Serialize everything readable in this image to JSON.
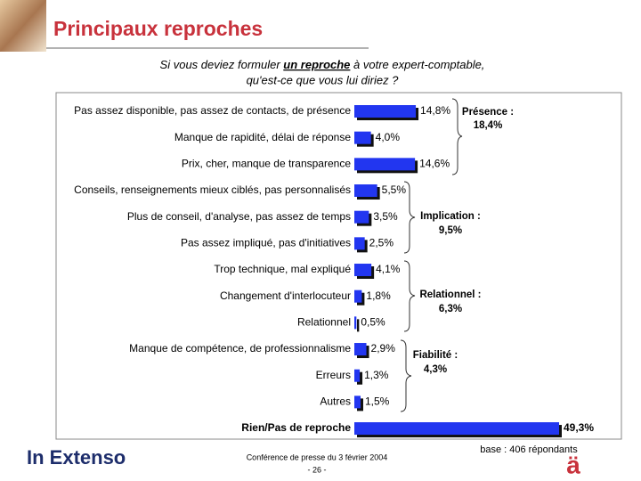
{
  "chart_data": {
    "type": "bar",
    "orientation": "horizontal",
    "title": "Principaux reproches",
    "question": [
      "Si vous deviez formuler ",
      "un reproche",
      " à votre expert-comptable,",
      "qu'est-ce que vous lui diriez ?"
    ],
    "categories": [
      "Pas assez disponible, pas assez de contacts, de présence",
      "Manque de rapidité, délai de réponse",
      "Prix, cher, manque de transparence",
      "Conseils, renseignements mieux ciblés, pas personnalisés",
      "Plus de conseil, d'analyse, pas assez de temps",
      "Pas assez impliqué, pas d'initiatives",
      "Trop technique, mal expliqué",
      "Changement d'interlocuteur",
      "Relationnel",
      "Manque de compétence, de professionnalisme",
      "Erreurs",
      "Autres",
      "Rien/Pas de reproche"
    ],
    "values": [
      14.8,
      4.0,
      14.6,
      5.5,
      3.5,
      2.5,
      4.1,
      1.8,
      0.5,
      2.9,
      1.3,
      1.5,
      49.3
    ],
    "value_labels": [
      "14,8%",
      "4,0%",
      "14,6%",
      "5,5%",
      "3,5%",
      "2,5%",
      "4,1%",
      "1,8%",
      "0,5%",
      "2,9%",
      "1,3%",
      "1,5%",
      "49,3%"
    ],
    "color": "#2236f0",
    "groups": [
      {
        "label": "Présence :",
        "value": "18,4%"
      },
      {
        "label": "Implication :",
        "value": "9,5%"
      },
      {
        "label": "Relationnel :",
        "value": "6,3%"
      },
      {
        "label": "Fiabilité :",
        "value": "4,3%"
      }
    ]
  },
  "footer": {
    "brand": "In Extenso",
    "event": "Conférence de presse du 3 février 2004",
    "page": "- 26 -",
    "base": "base : 406 répondants",
    "logo": "ä"
  }
}
